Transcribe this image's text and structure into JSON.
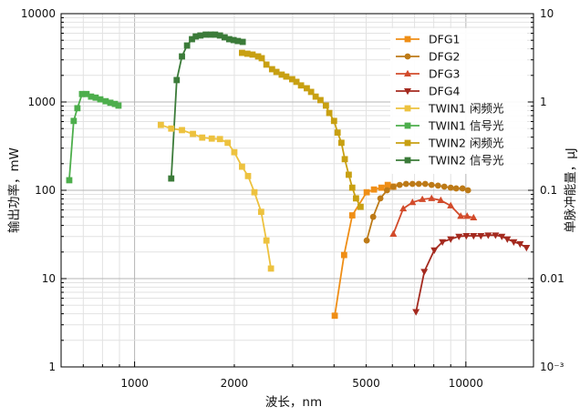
{
  "chart_data": {
    "type": "line",
    "xlabel": "波长，nm",
    "ylabel": "输出功率，mW",
    "y2label": "单脉冲能量，μJ",
    "xscale": "log",
    "yscale": "log",
    "y2scale": "log",
    "xlim": [
      600,
      16000
    ],
    "ylim": [
      1,
      10000
    ],
    "y2lim": [
      0.001,
      10
    ],
    "xticks": [
      {
        "value": 1000,
        "label": "1000"
      },
      {
        "value": 2000,
        "label": "2000"
      },
      {
        "value": 5000,
        "label": "5000"
      },
      {
        "value": 10000,
        "label": "10000"
      }
    ],
    "yticks": [
      {
        "value": 1,
        "label": "1"
      },
      {
        "value": 10,
        "label": "10"
      },
      {
        "value": 100,
        "label": "100"
      },
      {
        "value": 1000,
        "label": "1000"
      },
      {
        "value": 10000,
        "label": "10000"
      }
    ],
    "y2ticks": [
      {
        "value": 0.001,
        "label": "10⁻³"
      },
      {
        "value": 0.01,
        "label": "0.01"
      },
      {
        "value": 0.1,
        "label": "0.1"
      },
      {
        "value": 1,
        "label": "1"
      },
      {
        "value": 10,
        "label": "10"
      }
    ],
    "grid": true,
    "legend_position": "top-right",
    "series": [
      {
        "name": "DFG1",
        "color": "#EF8E16",
        "marker": "square",
        "x": [
          4020,
          4290,
          4540,
          5020,
          5280,
          5560,
          5810,
          6040
        ],
        "y": [
          3.8,
          18.5,
          52,
          95,
          102,
          107,
          115,
          110
        ]
      },
      {
        "name": "DFG2",
        "color": "#BD7A17",
        "marker": "circle",
        "x": [
          5020,
          5250,
          5520,
          5780,
          6040,
          6310,
          6600,
          6900,
          7210,
          7540,
          7880,
          8240,
          8610,
          9000,
          9350,
          9770,
          10150
        ],
        "y": [
          27,
          50,
          81,
          100,
          110,
          115,
          118,
          118,
          118,
          118,
          115,
          113,
          110,
          107,
          105,
          105,
          100
        ]
      },
      {
        "name": "DFG3",
        "color": "#D24B2B",
        "marker": "triangle-up",
        "x": [
          6040,
          6470,
          6900,
          7390,
          7880,
          8400,
          9000,
          9650,
          10090,
          10550
        ],
        "y": [
          32,
          62,
          73,
          79,
          81,
          77,
          67,
          51,
          51,
          49
        ]
      },
      {
        "name": "DFG4",
        "color": "#A42A1F",
        "marker": "triangle-down",
        "x": [
          7070,
          7490,
          8030,
          8500,
          9000,
          9530,
          10030,
          10550,
          11100,
          11680,
          12290,
          12840,
          13340,
          13950,
          14580,
          15240
        ],
        "y": [
          4.2,
          12,
          21,
          26,
          28,
          30,
          30.5,
          30.5,
          30.5,
          31,
          31,
          30,
          28,
          26,
          24.7,
          22.4
        ]
      },
      {
        "name": "TWIN1 闲频光",
        "color": "#EDC23F",
        "marker": "square",
        "x": [
          1200,
          1290,
          1390,
          1500,
          1600,
          1710,
          1810,
          1910,
          2000,
          2110,
          2200,
          2300,
          2410,
          2500,
          2580
        ],
        "y": [
          550,
          500,
          480,
          435,
          395,
          385,
          380,
          345,
          270,
          185,
          145,
          95,
          57,
          27,
          13
        ]
      },
      {
        "name": "TWIN1 信号光",
        "color": "#4DAE4C",
        "marker": "square",
        "x": [
          635,
          655,
          672,
          694,
          716,
          739,
          763,
          788,
          818,
          845,
          872,
          894
        ],
        "y": [
          130,
          610,
          850,
          1230,
          1230,
          1150,
          1120,
          1070,
          1020,
          980,
          950,
          910
        ]
      },
      {
        "name": "TWIN2 闲频光",
        "color": "#C8A012",
        "marker": "square",
        "x": [
          2110,
          2190,
          2270,
          2360,
          2420,
          2500,
          2600,
          2680,
          2780,
          2870,
          2990,
          3080,
          3180,
          3310,
          3410,
          3520,
          3640,
          3780,
          3870,
          4000,
          4100,
          4210,
          4310,
          4430,
          4540,
          4660,
          4810
        ],
        "y": [
          3600,
          3520,
          3440,
          3280,
          3130,
          2650,
          2350,
          2190,
          2040,
          1940,
          1810,
          1690,
          1540,
          1430,
          1300,
          1150,
          1050,
          910,
          750,
          610,
          450,
          345,
          225,
          150,
          107,
          81,
          65
        ]
      },
      {
        "name": "TWIN2 信号光",
        "color": "#3B7B39",
        "marker": "square",
        "x": [
          1290,
          1340,
          1390,
          1440,
          1490,
          1530,
          1580,
          1640,
          1700,
          1750,
          1810,
          1870,
          1930,
          1990,
          2050,
          2120
        ],
        "y": [
          136,
          1770,
          3280,
          4360,
          5140,
          5520,
          5660,
          5790,
          5790,
          5790,
          5660,
          5400,
          5140,
          5020,
          4900,
          4790
        ]
      }
    ]
  }
}
